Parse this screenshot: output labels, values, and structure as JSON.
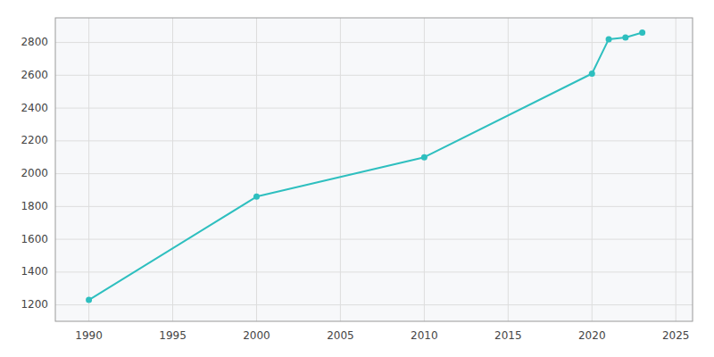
{
  "chart_data": {
    "type": "line",
    "x": [
      1990,
      2000,
      2010,
      2020,
      2021,
      2022,
      2023
    ],
    "values": [
      1230,
      1860,
      2100,
      2610,
      2820,
      2830,
      2860
    ],
    "color": "#2ebfbf",
    "marker": "circle",
    "xlim": [
      1988,
      2026
    ],
    "ylim": [
      1100,
      2950
    ],
    "xticks": [
      1990,
      1995,
      2000,
      2005,
      2010,
      2015,
      2020,
      2025
    ],
    "yticks": [
      1200,
      1400,
      1600,
      1800,
      2000,
      2200,
      2400,
      2600,
      2800
    ],
    "grid": true
  }
}
